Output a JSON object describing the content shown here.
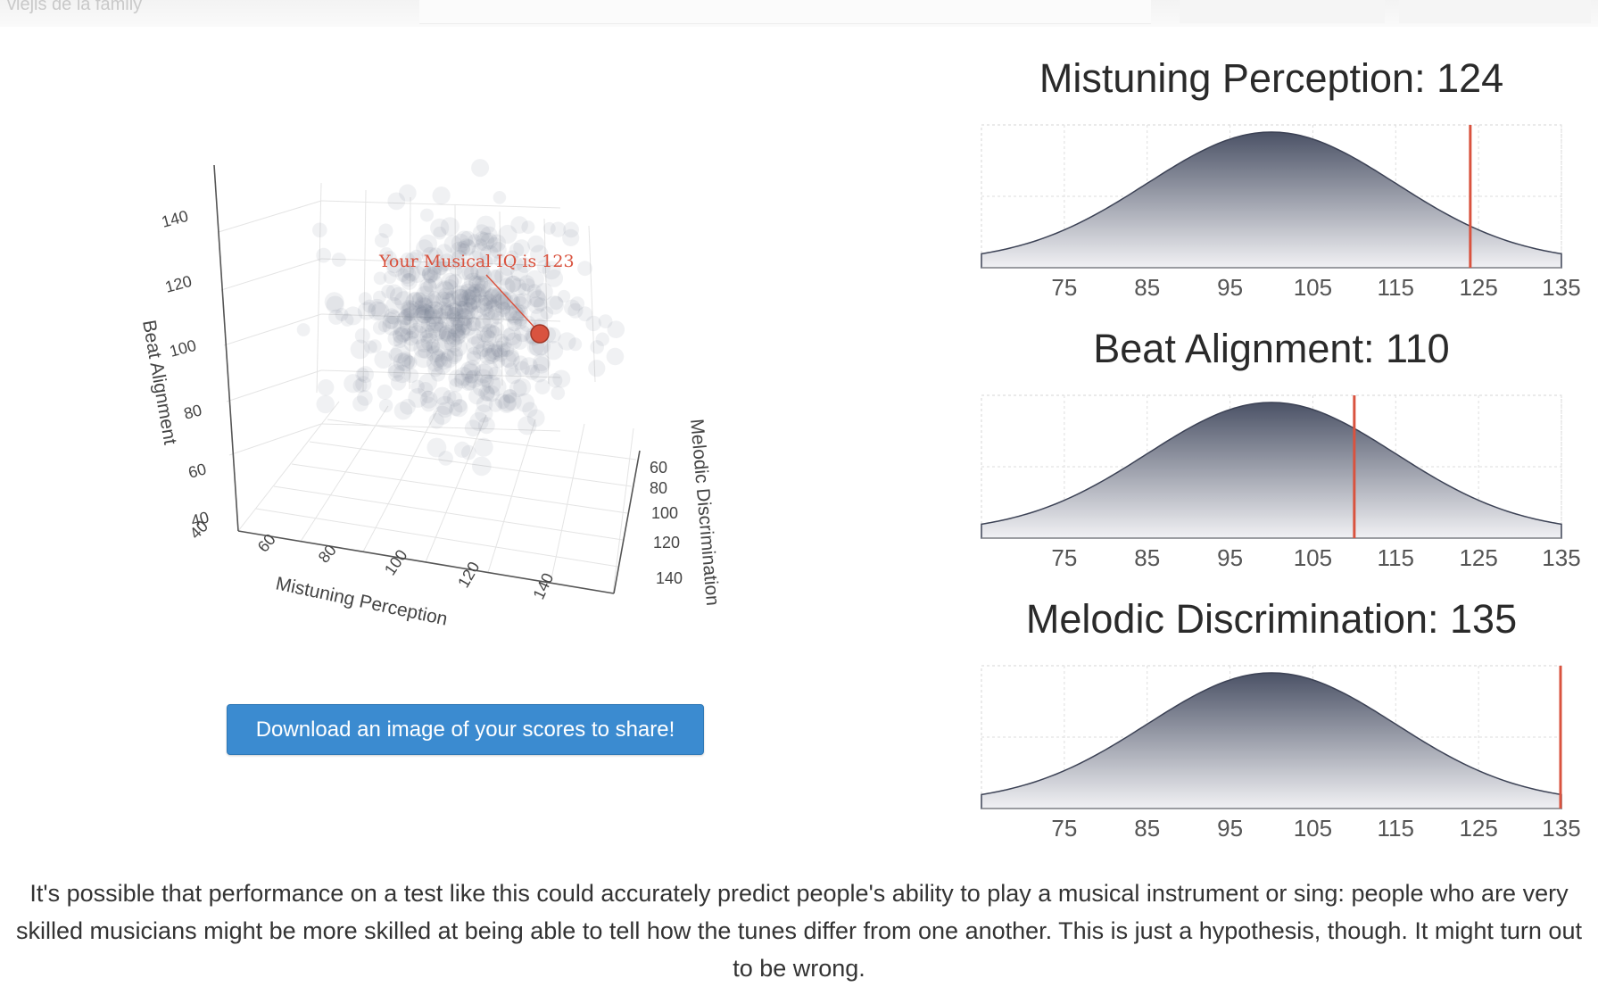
{
  "topbar": {
    "text": "viejis de la family"
  },
  "scatter3d": {
    "annotation": "Your Musical IQ is 123",
    "axes": {
      "x_title": "Mistuning Perception",
      "y_title": "Melodic Discrimination",
      "z_title": "Beat Alignment",
      "x_ticks": [
        "40",
        "60",
        "80",
        "100",
        "120",
        "140"
      ],
      "y_ticks": [
        "60",
        "80",
        "100",
        "120",
        "140"
      ],
      "z_ticks": [
        "40",
        "60",
        "80",
        "100",
        "120",
        "140"
      ]
    },
    "user_point_color": "#d9533f"
  },
  "download_label": "Download an image of your scores to share!",
  "chart_data": [
    {
      "type": "area",
      "title": "Mistuning Perception: 124",
      "x_ticks": [
        75,
        85,
        95,
        105,
        115,
        125,
        135
      ],
      "xlim": [
        65,
        135
      ],
      "distribution": {
        "mean": 100,
        "sd": 15
      },
      "score": 124,
      "marker_color": "#d9533f"
    },
    {
      "type": "area",
      "title": "Beat Alignment: 110",
      "x_ticks": [
        75,
        85,
        95,
        105,
        115,
        125,
        135
      ],
      "xlim": [
        65,
        135
      ],
      "distribution": {
        "mean": 100,
        "sd": 15
      },
      "score": 110,
      "marker_color": "#d9533f"
    },
    {
      "type": "area",
      "title": "Melodic Discrimination: 135",
      "x_ticks": [
        75,
        85,
        95,
        105,
        115,
        125,
        135
      ],
      "xlim": [
        65,
        135
      ],
      "distribution": {
        "mean": 100,
        "sd": 15
      },
      "score": 135,
      "marker_color": "#d9533f"
    }
  ],
  "body_text": "It's possible that performance on a test like this could accurately predict people's ability to play a musical instrument or sing: people who are very skilled musicians might be more skilled at being able to tell how the tunes differ from one another. This is just a hypothesis, though. It might turn out to be wrong."
}
